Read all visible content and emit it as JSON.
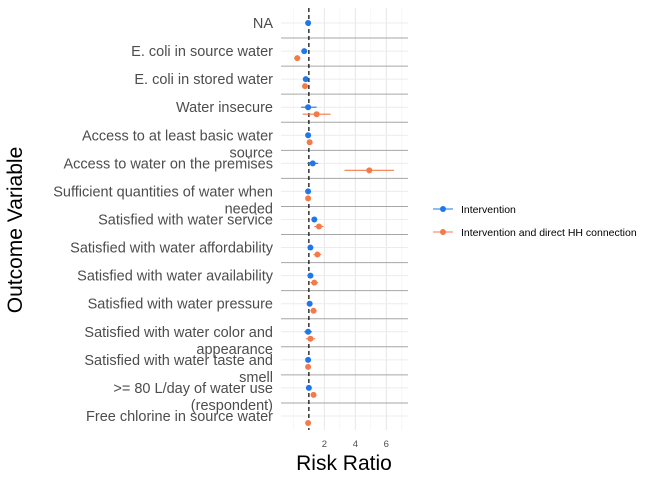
{
  "chart_data": {
    "type": "forest",
    "title": "",
    "xlabel": "Risk Ratio",
    "ylabel": "Outcome Variable",
    "xlim": [
      -0.8,
      7.4
    ],
    "xticks": [
      2,
      4,
      6
    ],
    "reference_line": 1,
    "grid": true,
    "legend_position": "right",
    "categories": [
      "NA",
      "E. coli in source water",
      "E. coli in stored water",
      "Water insecure",
      "Access to at least basic water source",
      "Access to water on the premises",
      "Sufficient quantities of water when needed",
      "Satisfied with water service",
      "Satisfied with water affordability",
      "Satisfied with water availability",
      "Satisfied with water pressure",
      "Satisfied with water color and appearance",
      "Satisfied with water taste and smell",
      ">= 80 L/day of water use (respondent)",
      "Free chlorine in source water"
    ],
    "category_lines": [
      [
        "NA"
      ],
      [
        "E. coli in source water"
      ],
      [
        "E. coli in stored water"
      ],
      [
        "Water insecure"
      ],
      [
        "Access to at least basic water",
        "source"
      ],
      [
        "Access to water on the premises"
      ],
      [
        "Sufficient quantities of water when",
        "needed"
      ],
      [
        "Satisfied with water service"
      ],
      [
        "Satisfied with water affordability"
      ],
      [
        "Satisfied with water availability"
      ],
      [
        "Satisfied with water pressure"
      ],
      [
        "Satisfied with water color and",
        "appearance"
      ],
      [
        "Satisfied with water taste and",
        "smell"
      ],
      [
        ">= 80 L/day of water use",
        "(respondent)"
      ],
      [
        "Free chlorine in source water"
      ]
    ],
    "series": [
      {
        "name": "Intervention",
        "color": "#1f77e8",
        "points": [
          {
            "est": 0.95,
            "lo": 0.85,
            "hi": 1.05
          },
          {
            "est": 0.7,
            "lo": 0.6,
            "hi": 0.8
          },
          {
            "est": 0.8,
            "lo": 0.7,
            "hi": 0.9
          },
          {
            "est": 0.95,
            "lo": 0.5,
            "hi": 1.5
          },
          {
            "est": 0.95,
            "lo": 0.85,
            "hi": 1.05
          },
          {
            "est": 1.25,
            "lo": 0.9,
            "hi": 1.6
          },
          {
            "est": 0.95,
            "lo": 0.85,
            "hi": 1.05
          },
          {
            "est": 1.35,
            "lo": 1.2,
            "hi": 1.5
          },
          {
            "est": 1.1,
            "lo": 0.95,
            "hi": 1.25
          },
          {
            "est": 1.1,
            "lo": 0.95,
            "hi": 1.25
          },
          {
            "est": 1.05,
            "lo": 0.95,
            "hi": 1.15
          },
          {
            "est": 0.95,
            "lo": 0.7,
            "hi": 1.2
          },
          {
            "est": 0.95,
            "lo": 0.85,
            "hi": 1.05
          },
          {
            "est": 1.0,
            "lo": 0.9,
            "hi": 1.1
          },
          null
        ]
      },
      {
        "name": "Intervention and direct HH connection",
        "color": "#f47a4a",
        "points": [
          null,
          {
            "est": 0.25,
            "lo": 0.05,
            "hi": 0.45
          },
          {
            "est": 0.75,
            "lo": 0.6,
            "hi": 0.9
          },
          {
            "est": 1.5,
            "lo": 0.6,
            "hi": 2.4
          },
          {
            "est": 1.05,
            "lo": 0.95,
            "hi": 1.15
          },
          {
            "est": 4.9,
            "lo": 3.3,
            "hi": 6.5
          },
          {
            "est": 0.95,
            "lo": 0.85,
            "hi": 1.05
          },
          {
            "est": 1.65,
            "lo": 1.35,
            "hi": 1.95
          },
          {
            "est": 1.55,
            "lo": 1.3,
            "hi": 1.8
          },
          {
            "est": 1.35,
            "lo": 1.1,
            "hi": 1.6
          },
          {
            "est": 1.3,
            "lo": 1.1,
            "hi": 1.5
          },
          {
            "est": 1.1,
            "lo": 0.8,
            "hi": 1.4
          },
          {
            "est": 0.95,
            "lo": 0.8,
            "hi": 1.1
          },
          {
            "est": 1.3,
            "lo": 1.15,
            "hi": 1.45
          },
          {
            "est": 0.95,
            "lo": 0.85,
            "hi": 1.05
          }
        ]
      }
    ]
  }
}
